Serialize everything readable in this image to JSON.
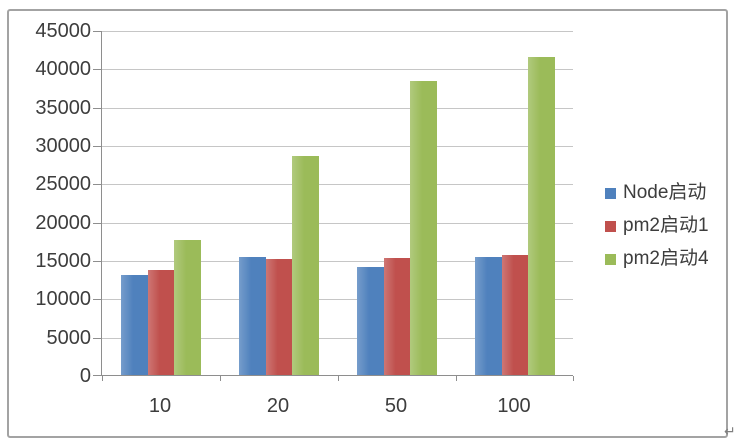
{
  "page": {
    "paragraph_mark": "↵"
  },
  "chart_data": {
    "type": "bar",
    "title": "",
    "xlabel": "",
    "ylabel": "",
    "categories": [
      "10",
      "20",
      "50",
      "100"
    ],
    "series": [
      {
        "name": "Node启动",
        "color": "#4f81bd",
        "values": [
          13000,
          15400,
          14100,
          15400
        ]
      },
      {
        "name": "pm2启动1",
        "color": "#c0504d",
        "values": [
          13700,
          15100,
          15200,
          15600
        ]
      },
      {
        "name": "pm2启动4",
        "color": "#9bbb59",
        "values": [
          17600,
          28500,
          38400,
          41500
        ]
      }
    ],
    "ylim": [
      0,
      45000
    ],
    "ytick_step": 5000,
    "grid": true,
    "legend_position": "right"
  },
  "colors": {
    "gridline": "#c6c6c6",
    "axis": "#8e8e8e",
    "text": "#3d3d3d",
    "frame_border": "#a3a3a3"
  }
}
